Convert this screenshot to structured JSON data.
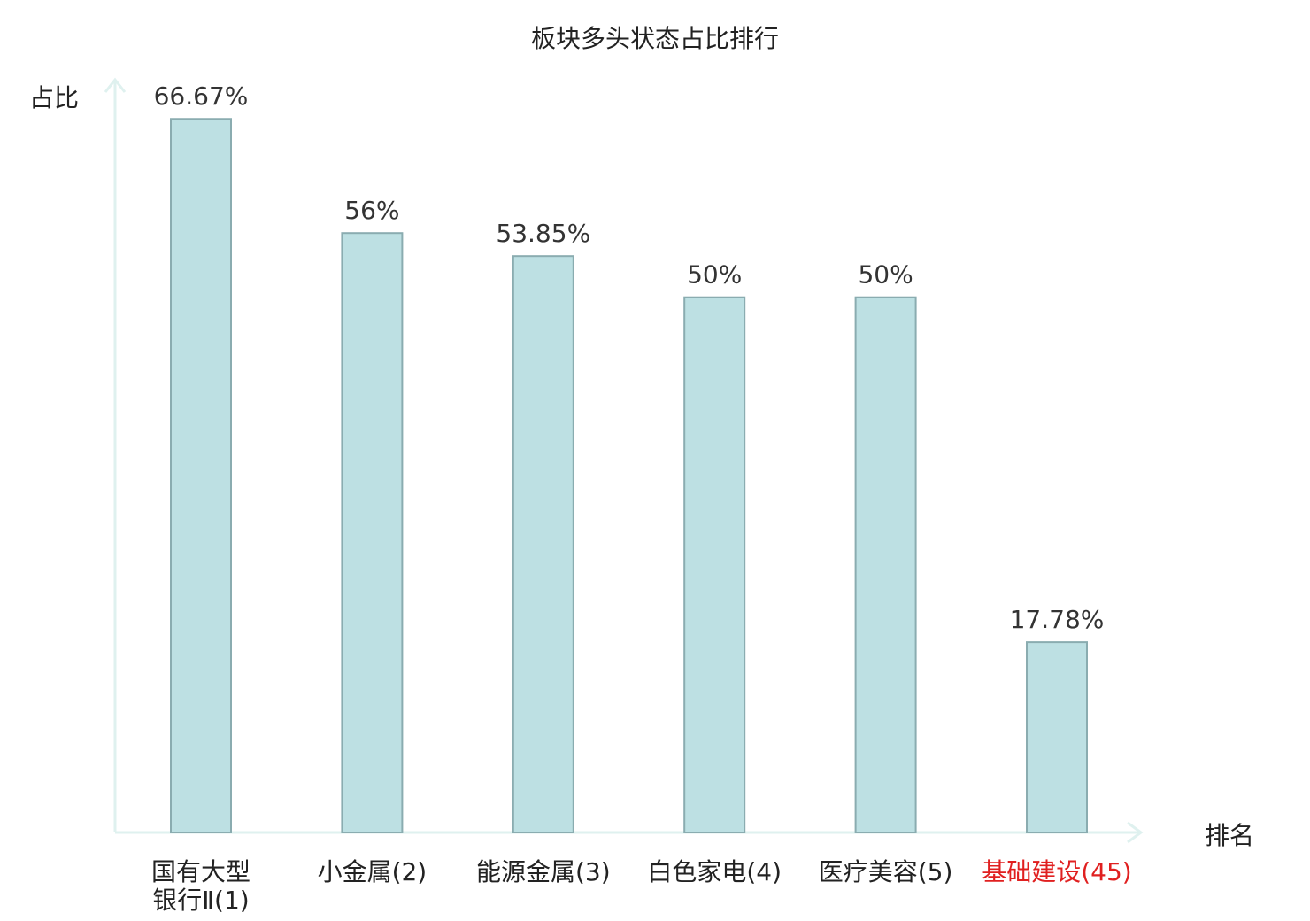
{
  "chart_data": {
    "type": "bar",
    "title": "板块多头状态占比排行",
    "ylabel": "占比",
    "xlabel": "排名",
    "categories": [
      [
        "国有大型",
        "银行Ⅱ(1)"
      ],
      [
        "小金属(2)"
      ],
      [
        "能源金属(3)"
      ],
      [
        "白色家电(4)"
      ],
      [
        "医疗美容(5)"
      ],
      [
        "基础建设(45)"
      ]
    ],
    "values": [
      66.67,
      56,
      53.85,
      50,
      50,
      17.78
    ],
    "value_labels": [
      "66.67%",
      "56%",
      "53.85%",
      "50%",
      "50%",
      "17.78%"
    ],
    "highlight_index": 5,
    "ylim": [
      0,
      70
    ],
    "grid": false,
    "legend": "none",
    "colors": {
      "bar_fill": "#bde0e3",
      "bar_stroke": "#8aacb0",
      "axis": "#dff1ef",
      "label": "#222222",
      "value_label": "#333333",
      "highlight": "#e02020"
    }
  }
}
